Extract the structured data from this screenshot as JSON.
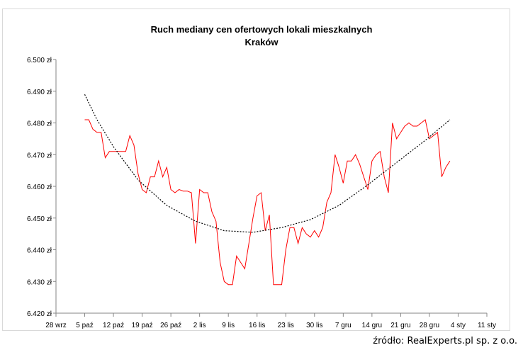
{
  "chart_data": {
    "type": "line",
    "title": "Ruch mediany cen ofertowych lokali mieszkalnych",
    "subtitle": "Kraków",
    "ylim": [
      6420,
      6500
    ],
    "y_ticks": [
      6420,
      6430,
      6440,
      6450,
      6460,
      6470,
      6480,
      6490,
      6500
    ],
    "y_tick_labels": [
      "6.420 zł",
      "6.430 zł",
      "6.440 zł",
      "6.450 zł",
      "6.460 zł",
      "6.470 zł",
      "6.480 zł",
      "6.490 zł",
      "6.500 zł"
    ],
    "x_tick_labels": [
      "28 wrz",
      "5 paź",
      "12 paź",
      "19 paź",
      "26 paź",
      "2 lis",
      "9 lis",
      "16 lis",
      "23 lis",
      "30 lis",
      "7 gru",
      "14 gru",
      "21 gru",
      "28 gru",
      "4 sty",
      "11 sty"
    ],
    "xlim_days": [
      0,
      105
    ],
    "grid": false,
    "series": [
      {
        "type": "line",
        "color": "#ff0000",
        "points": [
          [
            7,
            6481
          ],
          [
            8,
            6481
          ],
          [
            9,
            6478
          ],
          [
            10,
            6477
          ],
          [
            11,
            6477
          ],
          [
            12,
            6469
          ],
          [
            13,
            6471
          ],
          [
            14,
            6471
          ],
          [
            15,
            6471
          ],
          [
            16,
            6471
          ],
          [
            17,
            6471
          ],
          [
            18,
            6476
          ],
          [
            19,
            6473
          ],
          [
            20,
            6464
          ],
          [
            21,
            6459
          ],
          [
            22,
            6458
          ],
          [
            23,
            6463
          ],
          [
            24,
            6463
          ],
          [
            25,
            6468
          ],
          [
            26,
            6463
          ],
          [
            27,
            6466
          ],
          [
            28,
            6459
          ],
          [
            29,
            6458
          ],
          [
            30,
            6459
          ],
          [
            31,
            6458.5
          ],
          [
            32,
            6458.5
          ],
          [
            33,
            6458
          ],
          [
            34,
            6442
          ],
          [
            35,
            6459
          ],
          [
            36,
            6458
          ],
          [
            37,
            6458
          ],
          [
            38,
            6452
          ],
          [
            39,
            6449
          ],
          [
            40,
            6436
          ],
          [
            41,
            6430
          ],
          [
            42,
            6429
          ],
          [
            43,
            6429
          ],
          [
            44,
            6438
          ],
          [
            45,
            6436
          ],
          [
            46,
            6434
          ],
          [
            47,
            6442
          ],
          [
            48,
            6450
          ],
          [
            49,
            6457
          ],
          [
            50,
            6458
          ],
          [
            51,
            6446
          ],
          [
            52,
            6451
          ],
          [
            53,
            6429
          ],
          [
            54,
            6429
          ],
          [
            55,
            6429
          ],
          [
            56,
            6440
          ],
          [
            57,
            6447
          ],
          [
            58,
            6447
          ],
          [
            59,
            6442
          ],
          [
            60,
            6447
          ],
          [
            61,
            6445
          ],
          [
            62,
            6444
          ],
          [
            63,
            6446
          ],
          [
            64,
            6444
          ],
          [
            65,
            6447
          ],
          [
            66,
            6455
          ],
          [
            67,
            6458
          ],
          [
            68,
            6470
          ],
          [
            69,
            6466
          ],
          [
            70,
            6461
          ],
          [
            71,
            6468
          ],
          [
            72,
            6468
          ],
          [
            73,
            6470
          ],
          [
            74,
            6467
          ],
          [
            75,
            6463
          ],
          [
            76,
            6459
          ],
          [
            77,
            6468
          ],
          [
            78,
            6470
          ],
          [
            79,
            6471
          ],
          [
            80,
            6463
          ],
          [
            81,
            6458
          ],
          [
            82,
            6480
          ],
          [
            83,
            6475
          ],
          [
            84,
            6477
          ],
          [
            85,
            6479
          ],
          [
            86,
            6480
          ],
          [
            87,
            6479
          ],
          [
            88,
            6479
          ],
          [
            89,
            6480
          ],
          [
            90,
            6481
          ],
          [
            91,
            6475
          ],
          [
            92,
            6476
          ],
          [
            93,
            6477
          ],
          [
            94,
            6463
          ],
          [
            95,
            6466
          ],
          [
            96,
            6468
          ]
        ]
      },
      {
        "type": "trend",
        "color": "#000000",
        "dash": "2,2",
        "points": [
          [
            7,
            6489
          ],
          [
            10,
            6481
          ],
          [
            14,
            6472.5
          ],
          [
            20,
            6462
          ],
          [
            27,
            6454
          ],
          [
            34,
            6449
          ],
          [
            41,
            6446
          ],
          [
            48,
            6445.5
          ],
          [
            55,
            6447
          ],
          [
            62,
            6449.5
          ],
          [
            69,
            6454
          ],
          [
            76,
            6460.5
          ],
          [
            83,
            6467.5
          ],
          [
            90,
            6474.5
          ],
          [
            96,
            6481
          ]
        ]
      }
    ]
  },
  "footer": {
    "source": "źródło: RealExperts.pl sp. z o.o."
  }
}
